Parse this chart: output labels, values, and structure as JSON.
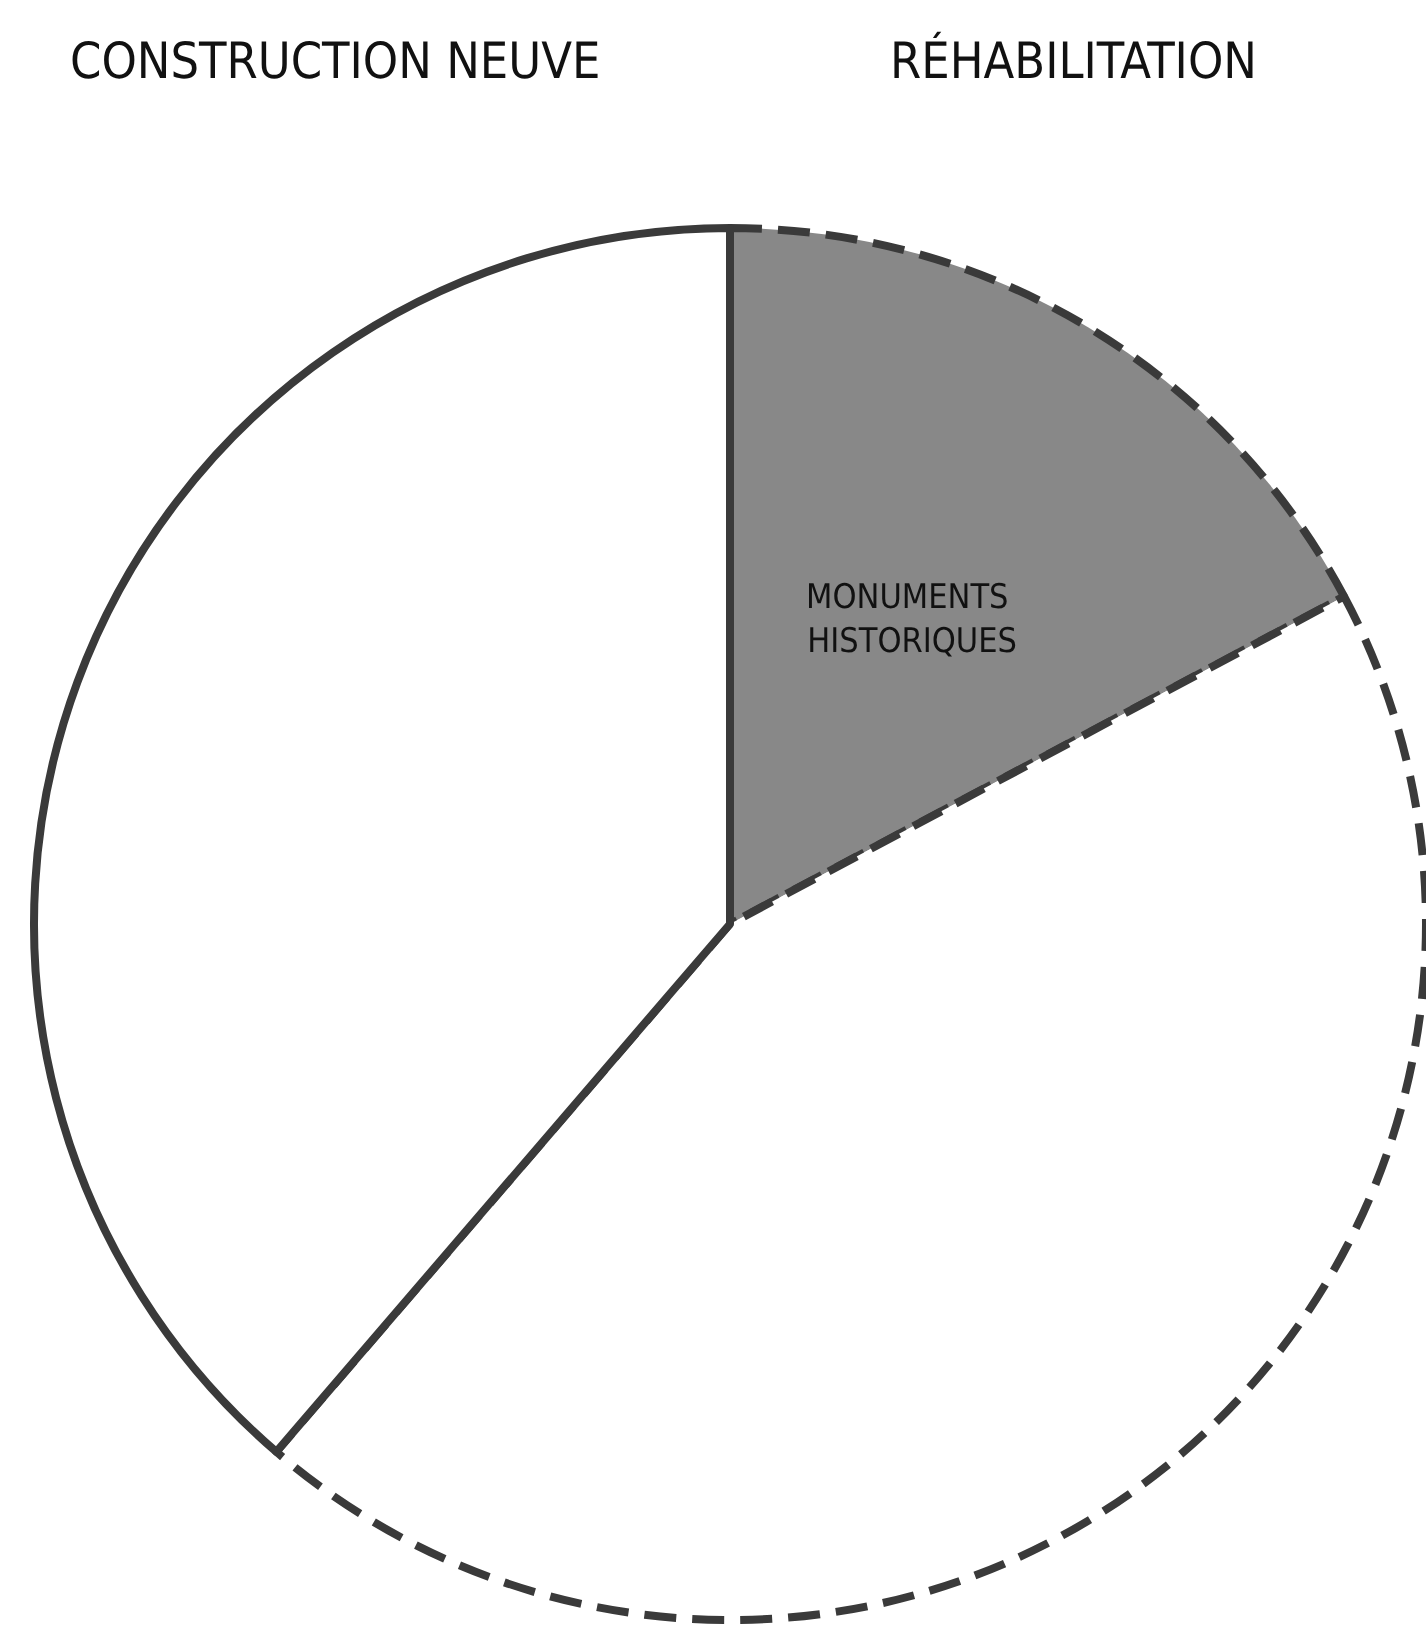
{
  "chart_data": {
    "type": "pie",
    "categories": [
      "MONUMENTS HISTORIQUES",
      null,
      null
    ],
    "values": [
      17.2,
      44.1,
      38.7
    ],
    "colors": [
      "#888888",
      "#ffffff",
      "#ffffff"
    ],
    "line_style": [
      "dashed",
      "dashed",
      "solid"
    ],
    "annotations": [
      "CONSTRUCTION NEUVE",
      "RÉHABILITATION"
    ]
  }
}
